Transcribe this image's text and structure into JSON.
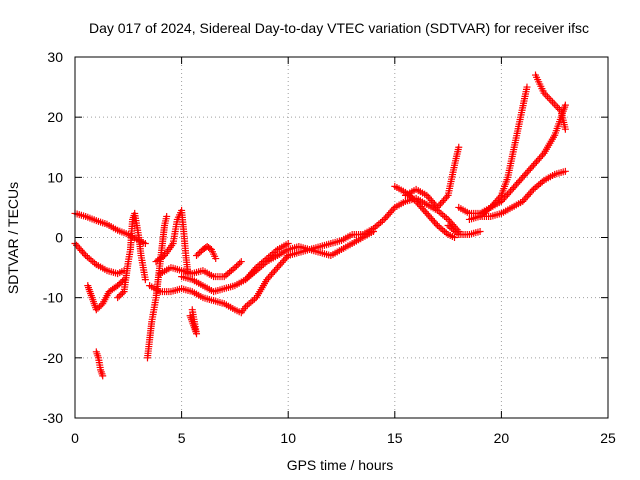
{
  "chart_data": {
    "type": "scatter",
    "title": "Day 017 of 2024, Sidereal Day-to-day VTEC variation (SDTVAR) for receiver ifsc",
    "xlabel": "GPS time / hours",
    "ylabel": "SDTVAR / TECUs",
    "xlim": [
      0,
      25
    ],
    "ylim": [
      -30,
      30
    ],
    "xticks": [
      0,
      5,
      10,
      15,
      20,
      25
    ],
    "yticks": [
      -30,
      -20,
      -10,
      0,
      10,
      20,
      30
    ],
    "xtick_labels": [
      "0",
      "5",
      "10",
      "15",
      "20",
      "25"
    ],
    "ytick_labels": [
      "-30",
      "-20",
      "-10",
      "0",
      "10",
      "20",
      "30"
    ],
    "grid": true,
    "marker": "+",
    "color": "#ff0000",
    "series": [
      {
        "points": [
          [
            0,
            4
          ],
          [
            0.5,
            3.5
          ],
          [
            1,
            2.8
          ],
          [
            1.5,
            2.2
          ],
          [
            2,
            1.2
          ],
          [
            2.5,
            0.5
          ],
          [
            3,
            -0.5
          ],
          [
            3.3,
            -1
          ]
        ]
      },
      {
        "points": [
          [
            0,
            -1
          ],
          [
            0.5,
            -3
          ],
          [
            1,
            -4.5
          ],
          [
            1.5,
            -5.5
          ],
          [
            2,
            -6
          ],
          [
            2.3,
            -5.5
          ]
        ]
      },
      {
        "points": [
          [
            0.6,
            -8
          ],
          [
            0.8,
            -10
          ],
          [
            1,
            -12
          ],
          [
            1.3,
            -11
          ],
          [
            1.6,
            -9
          ],
          [
            2,
            -8
          ],
          [
            2.3,
            -7
          ]
        ]
      },
      {
        "points": [
          [
            1,
            -19
          ],
          [
            1.1,
            -20
          ],
          [
            1.2,
            -22
          ],
          [
            1.3,
            -23
          ]
        ]
      },
      {
        "points": [
          [
            2,
            -10
          ],
          [
            2.3,
            -9
          ],
          [
            2.5,
            -4
          ],
          [
            2.6,
            -2
          ],
          [
            2.7,
            3
          ],
          [
            2.8,
            4
          ],
          [
            3,
            0
          ],
          [
            3.1,
            -3
          ],
          [
            3.3,
            -7
          ]
        ]
      },
      {
        "points": [
          [
            3.4,
            -20
          ],
          [
            3.5,
            -17
          ],
          [
            3.6,
            -14
          ],
          [
            3.7,
            -12
          ],
          [
            3.8,
            -10
          ],
          [
            3.9,
            -7
          ],
          [
            4,
            -4
          ],
          [
            4.1,
            -1
          ],
          [
            4.2,
            2
          ],
          [
            4.3,
            3.5
          ]
        ]
      },
      {
        "points": [
          [
            3.5,
            -8
          ],
          [
            4,
            -9
          ],
          [
            4.5,
            -9
          ],
          [
            5,
            -8.5
          ],
          [
            5.5,
            -9
          ],
          [
            6,
            -10
          ],
          [
            6.5,
            -10.5
          ],
          [
            7,
            -11
          ],
          [
            7.5,
            -12
          ],
          [
            7.8,
            -12.5
          ],
          [
            8,
            -11.5
          ],
          [
            8.5,
            -10
          ],
          [
            9,
            -7
          ],
          [
            9.5,
            -5
          ],
          [
            10,
            -3
          ]
        ]
      },
      {
        "points": [
          [
            3.8,
            -4
          ],
          [
            4.2,
            -3
          ],
          [
            4.6,
            -1
          ],
          [
            4.8,
            3
          ],
          [
            5,
            4.5
          ],
          [
            5.1,
            1
          ],
          [
            5.2,
            -3
          ],
          [
            5.3,
            -6
          ]
        ]
      },
      {
        "points": [
          [
            5.4,
            -13
          ],
          [
            5.5,
            -14
          ],
          [
            5.6,
            -15
          ],
          [
            5.7,
            -16
          ],
          [
            5.5,
            -12
          ]
        ]
      },
      {
        "points": [
          [
            4,
            -6
          ],
          [
            4.5,
            -5
          ],
          [
            5,
            -5.5
          ],
          [
            5.5,
            -6
          ],
          [
            6,
            -5.5
          ],
          [
            6.5,
            -6.5
          ],
          [
            7,
            -6.5
          ],
          [
            7.5,
            -5
          ],
          [
            7.8,
            -4
          ]
        ]
      },
      {
        "points": [
          [
            5,
            -6.5
          ],
          [
            5.5,
            -7
          ],
          [
            6,
            -8
          ],
          [
            6.5,
            -9
          ],
          [
            7,
            -8.5
          ],
          [
            7.5,
            -8
          ],
          [
            8,
            -7
          ],
          [
            8.5,
            -5
          ],
          [
            9,
            -3.5
          ],
          [
            9.5,
            -2
          ],
          [
            10,
            -1
          ]
        ]
      },
      {
        "points": [
          [
            5.7,
            -3
          ],
          [
            6,
            -2
          ],
          [
            6.2,
            -1.5
          ],
          [
            6.4,
            -2
          ],
          [
            6.6,
            -3.5
          ]
        ]
      },
      {
        "points": [
          [
            8,
            -7
          ],
          [
            8.5,
            -5.5
          ],
          [
            9,
            -4
          ],
          [
            9.5,
            -3
          ],
          [
            10,
            -2
          ],
          [
            10.5,
            -1.5
          ],
          [
            11,
            -2
          ],
          [
            11.5,
            -2.5
          ],
          [
            12,
            -3
          ],
          [
            12.5,
            -2
          ],
          [
            13,
            -1
          ],
          [
            13.5,
            0
          ],
          [
            14,
            1
          ]
        ]
      },
      {
        "points": [
          [
            10,
            -3
          ],
          [
            10.5,
            -2.5
          ],
          [
            11,
            -2
          ],
          [
            11.5,
            -1.5
          ],
          [
            12,
            -1
          ],
          [
            12.5,
            -0.5
          ],
          [
            13,
            0.5
          ],
          [
            13.5,
            0.5
          ],
          [
            14,
            1.5
          ],
          [
            14.5,
            3
          ],
          [
            15,
            5
          ],
          [
            15.5,
            6
          ],
          [
            16,
            6.5
          ],
          [
            16.5,
            5.5
          ],
          [
            17,
            4.5
          ],
          [
            17.5,
            3
          ],
          [
            18,
            1
          ]
        ]
      },
      {
        "points": [
          [
            15,
            8.5
          ],
          [
            15.5,
            7.5
          ],
          [
            16,
            6
          ],
          [
            16.5,
            4
          ],
          [
            17,
            2
          ],
          [
            17.5,
            0.5
          ],
          [
            17.8,
            0
          ]
        ]
      },
      {
        "points": [
          [
            15.5,
            7
          ],
          [
            16,
            8
          ],
          [
            16.5,
            7
          ],
          [
            17,
            5
          ],
          [
            17.5,
            7
          ],
          [
            17.8,
            12
          ],
          [
            18,
            15
          ]
        ]
      },
      {
        "points": [
          [
            17.5,
            2
          ],
          [
            18,
            0.5
          ],
          [
            18.5,
            0.5
          ],
          [
            19,
            1
          ]
        ]
      },
      {
        "points": [
          [
            18,
            5
          ],
          [
            18.5,
            4
          ],
          [
            19,
            4
          ],
          [
            19.5,
            5
          ],
          [
            20,
            7
          ],
          [
            20.3,
            10
          ],
          [
            20.6,
            15
          ],
          [
            20.9,
            20
          ],
          [
            21.2,
            25
          ]
        ]
      },
      {
        "points": [
          [
            18.5,
            3
          ],
          [
            19,
            3.5
          ],
          [
            19.5,
            5
          ],
          [
            20,
            6
          ],
          [
            20.5,
            8
          ],
          [
            21,
            10
          ],
          [
            21.5,
            12
          ],
          [
            22,
            14
          ],
          [
            22.5,
            17
          ],
          [
            22.8,
            20
          ],
          [
            23,
            22
          ]
        ]
      },
      {
        "points": [
          [
            19,
            3.5
          ],
          [
            19.5,
            3.5
          ],
          [
            20,
            4
          ],
          [
            20.5,
            5
          ],
          [
            21,
            6
          ],
          [
            21.5,
            8
          ],
          [
            22,
            9.5
          ],
          [
            22.5,
            10.5
          ],
          [
            23,
            11
          ]
        ]
      },
      {
        "points": [
          [
            21.6,
            27
          ],
          [
            22,
            24
          ],
          [
            22.4,
            22.5
          ],
          [
            22.8,
            21
          ],
          [
            23,
            18
          ]
        ]
      }
    ]
  }
}
